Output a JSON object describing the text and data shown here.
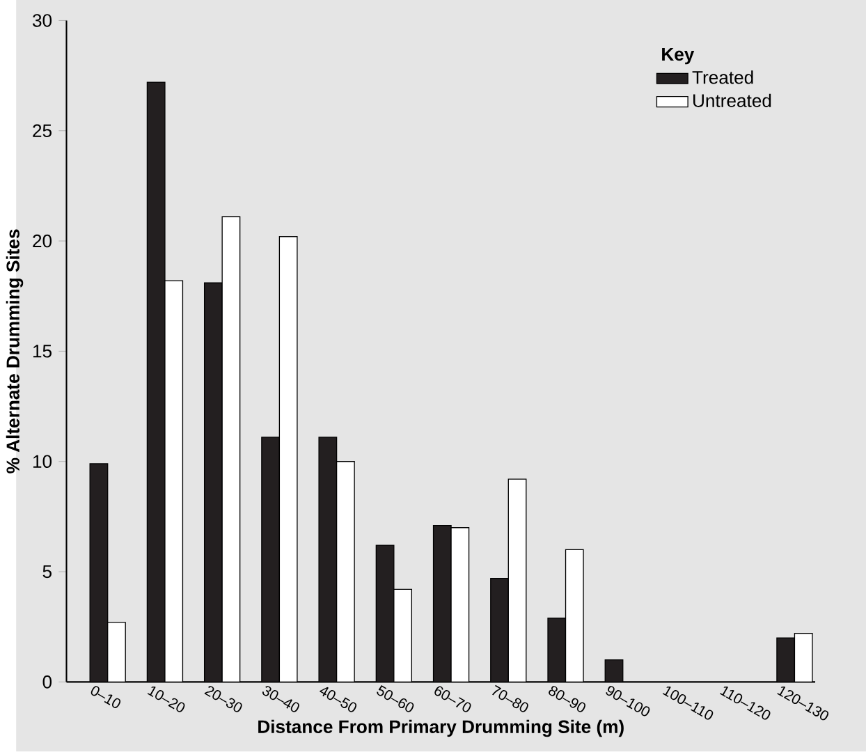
{
  "chart_data": {
    "type": "bar",
    "xlabel": "Distance From Primary Drumming Site (m)",
    "ylabel": "% Alternate Drumming Sites",
    "legend_title": "Key",
    "categories": [
      "0–10",
      "10–20",
      "20–30",
      "30–40",
      "40–50",
      "50–60",
      "60–70",
      "70–80",
      "80–90",
      "90–100",
      "100–110",
      "110–120",
      "120–130"
    ],
    "series": [
      {
        "name": "Treated",
        "color": "#231f20",
        "values": [
          9.9,
          27.2,
          18.1,
          11.1,
          11.1,
          6.2,
          7.1,
          4.7,
          2.9,
          1.0,
          null,
          null,
          2.0
        ]
      },
      {
        "name": "Untreated",
        "color": "#ffffff",
        "values": [
          2.7,
          18.2,
          21.1,
          20.2,
          10.0,
          4.2,
          7.0,
          9.2,
          6.0,
          null,
          null,
          null,
          2.2
        ]
      }
    ],
    "ylim": [
      0,
      30
    ],
    "yticks": [
      0,
      5,
      10,
      15,
      20,
      25,
      30
    ],
    "grid": false,
    "legend": "top right"
  }
}
